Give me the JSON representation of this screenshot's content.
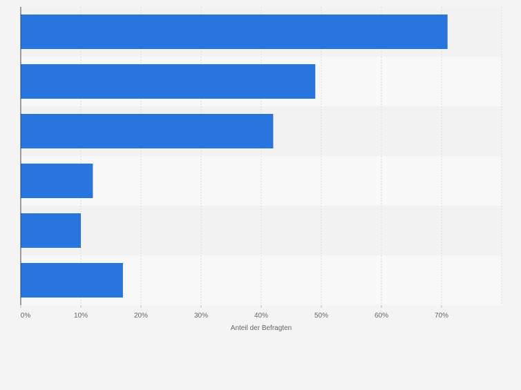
{
  "chart_data": {
    "type": "bar",
    "orientation": "horizontal",
    "categories": [
      "",
      "",
      "",
      "",
      "",
      ""
    ],
    "values": [
      71,
      49,
      42,
      12,
      10,
      17
    ],
    "xlabel": "Anteil der Befragten",
    "ylabel": "",
    "xlim": [
      0,
      80
    ],
    "x_ticks": [
      0,
      10,
      20,
      30,
      40,
      50,
      60,
      70
    ],
    "x_tick_labels": [
      "0%",
      "10%",
      "20%",
      "30%",
      "40%",
      "50%",
      "60%",
      "70%"
    ],
    "grid": true,
    "bar_color": "#2775de",
    "band_colors": [
      "#f2f2f2",
      "#f8f8f8"
    ]
  }
}
